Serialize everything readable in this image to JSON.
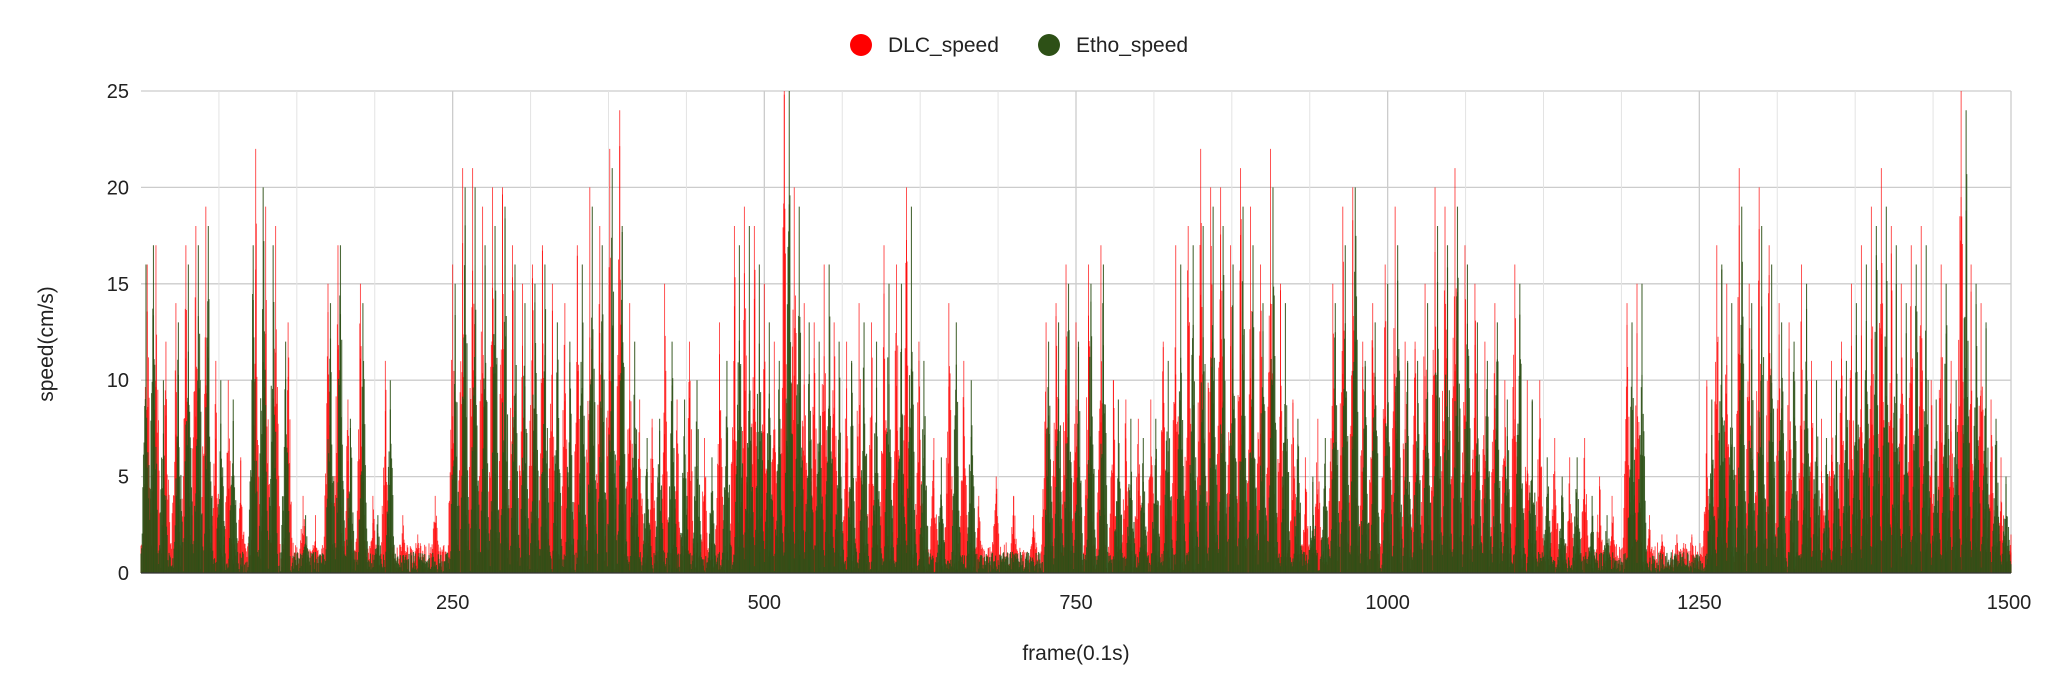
{
  "chart_data": {
    "type": "bar",
    "title": "",
    "xlabel": "frame(0.1s)",
    "ylabel": "speed(cm/s)",
    "xlim": [
      0,
      1500
    ],
    "ylim": [
      0,
      25
    ],
    "x_ticks": [
      250,
      500,
      750,
      1000,
      1250,
      1500
    ],
    "y_ticks": [
      0,
      5,
      10,
      15,
      20,
      25
    ],
    "grid": true,
    "legend_position": "top",
    "series": [
      {
        "name": "DLC_speed",
        "color": "#ff0000",
        "peaks": [
          [
            5,
            16
          ],
          [
            12,
            17
          ],
          [
            20,
            12
          ],
          [
            28,
            14
          ],
          [
            36,
            17
          ],
          [
            44,
            18
          ],
          [
            52,
            19
          ],
          [
            60,
            11
          ],
          [
            70,
            10
          ],
          [
            80,
            6
          ],
          [
            92,
            22
          ],
          [
            100,
            19
          ],
          [
            108,
            18
          ],
          [
            118,
            13
          ],
          [
            130,
            4
          ],
          [
            140,
            3
          ],
          [
            150,
            15
          ],
          [
            158,
            17
          ],
          [
            166,
            9
          ],
          [
            176,
            15
          ],
          [
            186,
            4
          ],
          [
            196,
            11
          ],
          [
            210,
            3
          ],
          [
            222,
            2
          ],
          [
            236,
            4
          ],
          [
            250,
            16
          ],
          [
            258,
            21
          ],
          [
            266,
            21
          ],
          [
            274,
            19
          ],
          [
            282,
            20
          ],
          [
            290,
            20
          ],
          [
            298,
            17
          ],
          [
            306,
            15
          ],
          [
            314,
            16
          ],
          [
            322,
            17
          ],
          [
            330,
            15
          ],
          [
            340,
            14
          ],
          [
            350,
            17
          ],
          [
            360,
            20
          ],
          [
            368,
            18
          ],
          [
            376,
            22
          ],
          [
            384,
            24
          ],
          [
            392,
            14
          ],
          [
            400,
            9
          ],
          [
            410,
            8
          ],
          [
            420,
            15
          ],
          [
            430,
            9
          ],
          [
            440,
            12
          ],
          [
            452,
            7
          ],
          [
            464,
            13
          ],
          [
            476,
            18
          ],
          [
            484,
            19
          ],
          [
            492,
            18
          ],
          [
            500,
            15
          ],
          [
            508,
            12
          ],
          [
            516,
            25
          ],
          [
            524,
            20
          ],
          [
            532,
            14
          ],
          [
            540,
            13
          ],
          [
            548,
            16
          ],
          [
            556,
            13
          ],
          [
            566,
            12
          ],
          [
            576,
            14
          ],
          [
            586,
            13
          ],
          [
            596,
            17
          ],
          [
            606,
            16
          ],
          [
            614,
            20
          ],
          [
            624,
            12
          ],
          [
            636,
            7
          ],
          [
            648,
            14
          ],
          [
            660,
            11
          ],
          [
            672,
            4
          ],
          [
            686,
            5
          ],
          [
            700,
            4
          ],
          [
            716,
            3
          ],
          [
            726,
            13
          ],
          [
            734,
            14
          ],
          [
            742,
            16
          ],
          [
            750,
            13
          ],
          [
            760,
            16
          ],
          [
            770,
            17
          ],
          [
            780,
            10
          ],
          [
            790,
            9
          ],
          [
            800,
            8
          ],
          [
            810,
            9
          ],
          [
            820,
            12
          ],
          [
            830,
            17
          ],
          [
            840,
            18
          ],
          [
            850,
            22
          ],
          [
            858,
            20
          ],
          [
            866,
            20
          ],
          [
            874,
            17
          ],
          [
            882,
            21
          ],
          [
            890,
            19
          ],
          [
            898,
            16
          ],
          [
            906,
            22
          ],
          [
            914,
            15
          ],
          [
            924,
            9
          ],
          [
            934,
            6
          ],
          [
            944,
            8
          ],
          [
            956,
            15
          ],
          [
            964,
            19
          ],
          [
            972,
            20
          ],
          [
            980,
            12
          ],
          [
            988,
            14
          ],
          [
            998,
            16
          ],
          [
            1006,
            19
          ],
          [
            1014,
            12
          ],
          [
            1022,
            12
          ],
          [
            1030,
            15
          ],
          [
            1038,
            20
          ],
          [
            1046,
            19
          ],
          [
            1054,
            21
          ],
          [
            1062,
            17
          ],
          [
            1070,
            15
          ],
          [
            1078,
            12
          ],
          [
            1086,
            14
          ],
          [
            1094,
            10
          ],
          [
            1102,
            16
          ],
          [
            1112,
            10
          ],
          [
            1122,
            10
          ],
          [
            1134,
            7
          ],
          [
            1146,
            6
          ],
          [
            1158,
            7
          ],
          [
            1170,
            5
          ],
          [
            1180,
            4
          ],
          [
            1192,
            14
          ],
          [
            1200,
            15
          ],
          [
            1210,
            3
          ],
          [
            1220,
            2
          ],
          [
            1232,
            2
          ],
          [
            1244,
            2
          ],
          [
            1256,
            10
          ],
          [
            1264,
            17
          ],
          [
            1272,
            15
          ],
          [
            1282,
            21
          ],
          [
            1290,
            15
          ],
          [
            1298,
            20
          ],
          [
            1306,
            17
          ],
          [
            1314,
            14
          ],
          [
            1322,
            13
          ],
          [
            1332,
            16
          ],
          [
            1340,
            11
          ],
          [
            1348,
            8
          ],
          [
            1356,
            11
          ],
          [
            1364,
            12
          ],
          [
            1372,
            15
          ],
          [
            1380,
            17
          ],
          [
            1388,
            19
          ],
          [
            1396,
            21
          ],
          [
            1404,
            18
          ],
          [
            1412,
            15
          ],
          [
            1420,
            17
          ],
          [
            1428,
            18
          ],
          [
            1436,
            10
          ],
          [
            1444,
            16
          ],
          [
            1452,
            11
          ],
          [
            1460,
            25
          ],
          [
            1468,
            16
          ],
          [
            1476,
            14
          ],
          [
            1484,
            9
          ],
          [
            1492,
            6
          ],
          [
            1500,
            2
          ]
        ]
      },
      {
        "name": "Etho_speed",
        "color": "#2d5016",
        "peaks": [
          [
            4,
            16
          ],
          [
            10,
            17
          ],
          [
            18,
            10
          ],
          [
            30,
            13
          ],
          [
            38,
            16
          ],
          [
            46,
            17
          ],
          [
            54,
            18
          ],
          [
            64,
            10
          ],
          [
            74,
            9
          ],
          [
            90,
            17
          ],
          [
            98,
            20
          ],
          [
            106,
            17
          ],
          [
            116,
            12
          ],
          [
            132,
            3
          ],
          [
            152,
            14
          ],
          [
            160,
            17
          ],
          [
            168,
            8
          ],
          [
            178,
            14
          ],
          [
            190,
            3
          ],
          [
            200,
            10
          ],
          [
            226,
            1
          ],
          [
            252,
            15
          ],
          [
            260,
            20
          ],
          [
            268,
            20
          ],
          [
            276,
            17
          ],
          [
            284,
            18
          ],
          [
            292,
            19
          ],
          [
            300,
            16
          ],
          [
            308,
            14
          ],
          [
            316,
            15
          ],
          [
            324,
            16
          ],
          [
            334,
            13
          ],
          [
            344,
            12
          ],
          [
            354,
            16
          ],
          [
            362,
            19
          ],
          [
            370,
            17
          ],
          [
            378,
            21
          ],
          [
            386,
            18
          ],
          [
            396,
            12
          ],
          [
            406,
            7
          ],
          [
            416,
            8
          ],
          [
            426,
            12
          ],
          [
            436,
            9
          ],
          [
            446,
            10
          ],
          [
            458,
            6
          ],
          [
            470,
            11
          ],
          [
            480,
            17
          ],
          [
            488,
            18
          ],
          [
            496,
            16
          ],
          [
            504,
            13
          ],
          [
            512,
            11
          ],
          [
            520,
            25
          ],
          [
            528,
            19
          ],
          [
            536,
            13
          ],
          [
            544,
            12
          ],
          [
            552,
            16
          ],
          [
            560,
            12
          ],
          [
            570,
            11
          ],
          [
            580,
            13
          ],
          [
            590,
            12
          ],
          [
            600,
            15
          ],
          [
            610,
            15
          ],
          [
            618,
            19
          ],
          [
            628,
            11
          ],
          [
            642,
            6
          ],
          [
            654,
            13
          ],
          [
            666,
            10
          ],
          [
            728,
            12
          ],
          [
            736,
            13
          ],
          [
            744,
            15
          ],
          [
            752,
            12
          ],
          [
            762,
            15
          ],
          [
            772,
            16
          ],
          [
            784,
            9
          ],
          [
            794,
            8
          ],
          [
            804,
            7
          ],
          [
            814,
            8
          ],
          [
            824,
            11
          ],
          [
            834,
            16
          ],
          [
            844,
            17
          ],
          [
            852,
            18
          ],
          [
            860,
            19
          ],
          [
            868,
            18
          ],
          [
            876,
            16
          ],
          [
            884,
            19
          ],
          [
            892,
            17
          ],
          [
            900,
            14
          ],
          [
            908,
            20
          ],
          [
            918,
            14
          ],
          [
            928,
            8
          ],
          [
            940,
            5
          ],
          [
            950,
            7
          ],
          [
            958,
            14
          ],
          [
            966,
            17
          ],
          [
            974,
            20
          ],
          [
            982,
            11
          ],
          [
            990,
            13
          ],
          [
            1000,
            15
          ],
          [
            1008,
            17
          ],
          [
            1016,
            11
          ],
          [
            1024,
            11
          ],
          [
            1032,
            14
          ],
          [
            1040,
            18
          ],
          [
            1048,
            17
          ],
          [
            1056,
            19
          ],
          [
            1064,
            16
          ],
          [
            1072,
            13
          ],
          [
            1080,
            11
          ],
          [
            1088,
            13
          ],
          [
            1096,
            9
          ],
          [
            1106,
            15
          ],
          [
            1116,
            9
          ],
          [
            1128,
            6
          ],
          [
            1140,
            5
          ],
          [
            1152,
            6
          ],
          [
            1164,
            4
          ],
          [
            1176,
            3
          ],
          [
            1196,
            13
          ],
          [
            1204,
            15
          ],
          [
            1260,
            9
          ],
          [
            1268,
            16
          ],
          [
            1276,
            14
          ],
          [
            1284,
            19
          ],
          [
            1292,
            14
          ],
          [
            1300,
            18
          ],
          [
            1308,
            16
          ],
          [
            1316,
            13
          ],
          [
            1326,
            12
          ],
          [
            1336,
            15
          ],
          [
            1344,
            10
          ],
          [
            1352,
            7
          ],
          [
            1360,
            10
          ],
          [
            1368,
            11
          ],
          [
            1376,
            14
          ],
          [
            1384,
            16
          ],
          [
            1392,
            18
          ],
          [
            1400,
            19
          ],
          [
            1408,
            17
          ],
          [
            1416,
            14
          ],
          [
            1424,
            16
          ],
          [
            1432,
            17
          ],
          [
            1440,
            9
          ],
          [
            1448,
            15
          ],
          [
            1456,
            10
          ],
          [
            1464,
            24
          ],
          [
            1472,
            15
          ],
          [
            1480,
            13
          ],
          [
            1488,
            8
          ],
          [
            1496,
            5
          ]
        ]
      }
    ]
  }
}
